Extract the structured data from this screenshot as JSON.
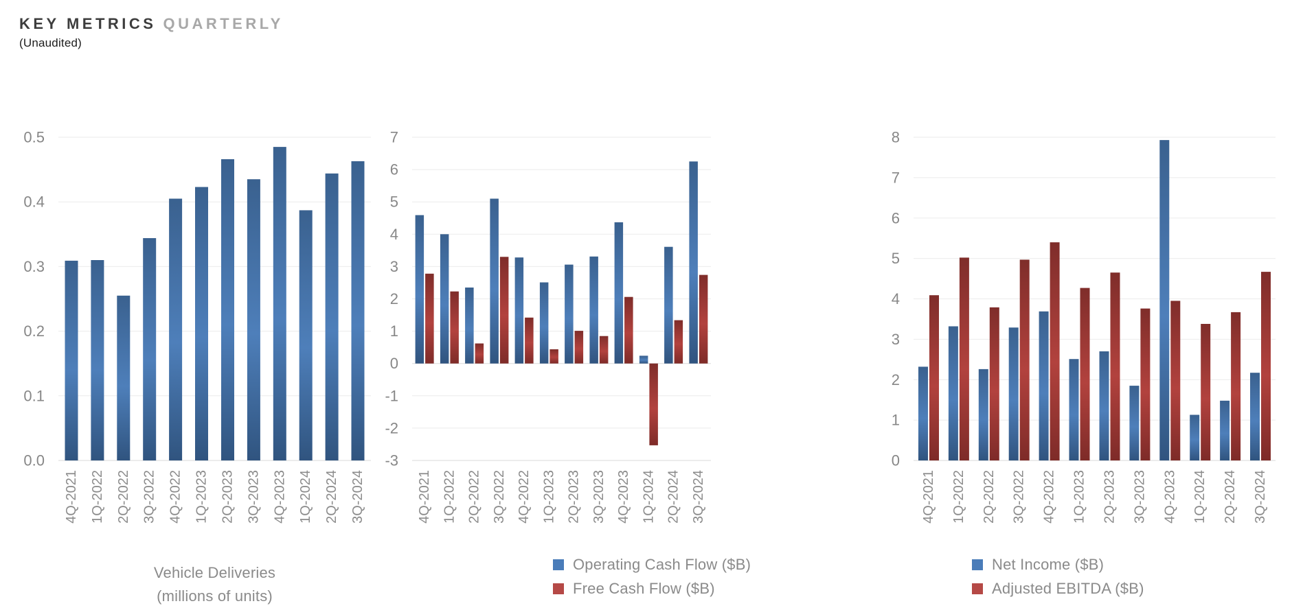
{
  "header": {
    "title_primary": "KEY METRICS",
    "title_secondary": "QUARTERLY",
    "subtitle": "(Unaudited)"
  },
  "colors": {
    "series_blue": "#4a7cb9",
    "series_red": "#b54946",
    "gridline": "#ebebeb",
    "axis_line": "#dadada",
    "tick_text": "#8c8c8c",
    "legend_text": "#8a8a8a"
  },
  "chart_data": [
    {
      "type": "bar",
      "title": "Vehicle Deliveries",
      "subtitle": "(millions of units)",
      "categories": [
        "4Q-2021",
        "1Q-2022",
        "2Q-2022",
        "3Q-2022",
        "4Q-2022",
        "1Q-2023",
        "2Q-2023",
        "3Q-2023",
        "4Q-2023",
        "1Q-2024",
        "2Q-2024",
        "3Q-2024"
      ],
      "series": [
        {
          "name": "Vehicle Deliveries (millions of units)",
          "color": "blue",
          "values": [
            0.309,
            0.31,
            0.255,
            0.344,
            0.405,
            0.423,
            0.466,
            0.435,
            0.485,
            0.387,
            0.444,
            0.463
          ]
        }
      ],
      "ylim": [
        0,
        0.5
      ],
      "ystep": 0.1,
      "ydecimals": 1,
      "grid": true,
      "legend_position": "none"
    },
    {
      "type": "bar",
      "title": "",
      "categories": [
        "4Q-2021",
        "1Q-2022",
        "2Q-2022",
        "3Q-2022",
        "4Q-2022",
        "1Q-2023",
        "2Q-2023",
        "3Q-2023",
        "4Q-2023",
        "1Q-2024",
        "2Q-2024",
        "3Q-2024"
      ],
      "series": [
        {
          "name": "Operating Cash Flow ($B)",
          "color": "blue",
          "values": [
            4.59,
            4.0,
            2.35,
            5.1,
            3.28,
            2.51,
            3.06,
            3.31,
            4.37,
            0.24,
            3.61,
            6.25
          ]
        },
        {
          "name": "Free Cash Flow ($B)",
          "color": "red",
          "values": [
            2.78,
            2.23,
            0.62,
            3.3,
            1.42,
            0.44,
            1.01,
            0.85,
            2.06,
            -2.53,
            1.34,
            2.74
          ]
        }
      ],
      "ylim": [
        -3,
        7
      ],
      "ystep": 1,
      "ydecimals": 0,
      "grid": true,
      "legend_position": "bottom"
    },
    {
      "type": "bar",
      "title": "",
      "categories": [
        "4Q-2021",
        "1Q-2022",
        "2Q-2022",
        "3Q-2022",
        "4Q-2022",
        "1Q-2023",
        "2Q-2023",
        "3Q-2023",
        "4Q-2023",
        "1Q-2024",
        "2Q-2024",
        "3Q-2024"
      ],
      "series": [
        {
          "name": "Net Income ($B)",
          "color": "blue",
          "values": [
            2.32,
            3.32,
            2.26,
            3.29,
            3.69,
            2.51,
            2.7,
            1.85,
            7.93,
            1.13,
            1.48,
            2.17
          ]
        },
        {
          "name": "Adjusted EBITDA ($B)",
          "color": "red",
          "values": [
            4.09,
            5.02,
            3.79,
            4.97,
            5.4,
            4.27,
            4.65,
            3.76,
            3.95,
            3.38,
            3.67,
            4.67
          ]
        }
      ],
      "ylim": [
        0,
        8
      ],
      "ystep": 1,
      "ydecimals": 0,
      "grid": true,
      "legend_position": "bottom"
    }
  ]
}
